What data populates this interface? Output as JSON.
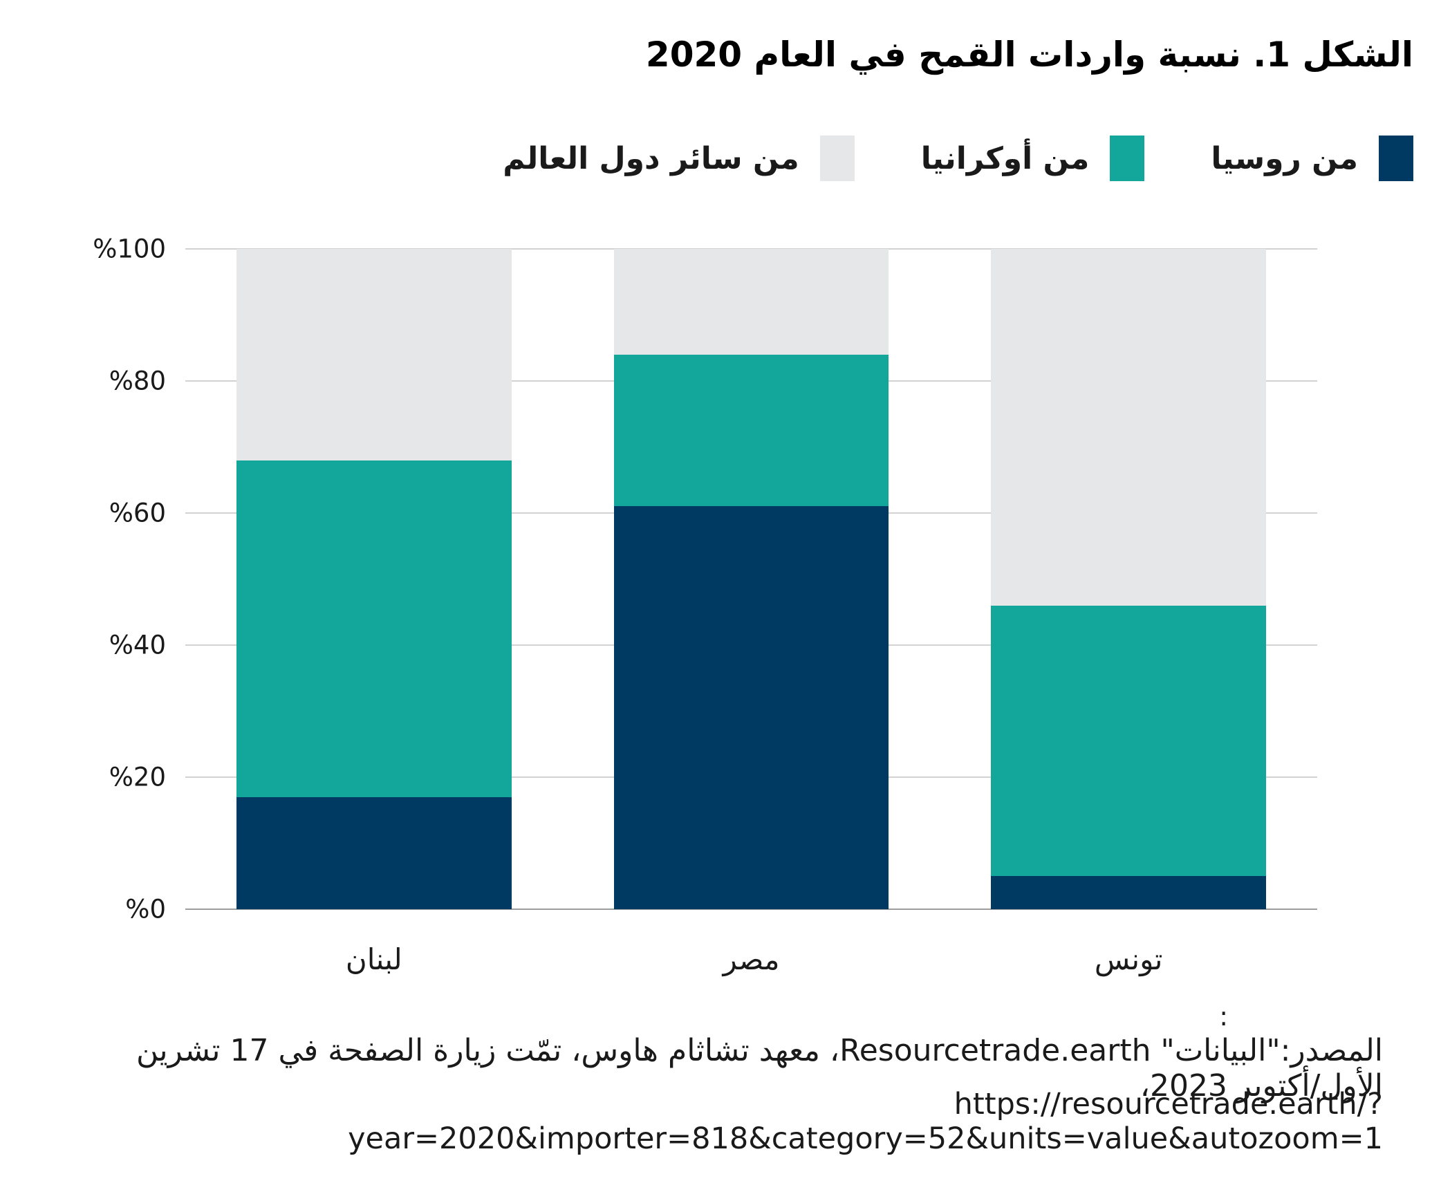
{
  "title": "الشكل 1. نسبة واردات القمح في العام 2020",
  "legend": {
    "items": [
      {
        "label": "من روسيا",
        "color": "#003a63"
      },
      {
        "label": "من أوكرانيا",
        "color": "#13a79c"
      },
      {
        "label": "من سائر دول العالم",
        "color": "#e6e7e8"
      }
    ]
  },
  "chart_data": {
    "type": "bar",
    "stacked": true,
    "title": "الشكل 1. نسبة واردات القمح في العام 2020",
    "categories": [
      "لبنان",
      "مصر",
      "تونس"
    ],
    "series": [
      {
        "name": "من روسيا",
        "color": "#003a63",
        "values": [
          17,
          61,
          5
        ]
      },
      {
        "name": "من أوكرانيا",
        "color": "#13a79c",
        "values": [
          51,
          23,
          41
        ]
      },
      {
        "name": "من سائر دول العالم",
        "color": "#e6e7e8",
        "values": [
          32,
          16,
          54
        ]
      }
    ],
    "ylabel": "",
    "xlabel": "",
    "ylim": [
      0,
      100
    ],
    "yticks": [
      {
        "label": "%0",
        "value": 0
      },
      {
        "label": "%20",
        "value": 20
      },
      {
        "label": "%40",
        "value": 40
      },
      {
        "label": "%60",
        "value": 60
      },
      {
        "label": "%80",
        "value": 80
      },
      {
        "label": "%100",
        "value": 100
      }
    ],
    "grid": true,
    "legend_position": "top-right",
    "layout": {
      "bar_width_pct": 24.3
    },
    "colors": {
      "gridline": "#d2d2d2",
      "axis_line": "#9e9e9e",
      "text": "#1a1a1a"
    }
  },
  "footer": {
    "colon": ":",
    "source": "المصدر:\"البيانات\" Resourcetrade.earth، معهد تشاثام هاوس، تمّت زيارة الصفحة في 17 تشرين الأول/أكتوبر 2023،",
    "url": "https://resourcetrade.earth/?year=2020&importer=818&category=52&units=value&autozoom=1"
  }
}
